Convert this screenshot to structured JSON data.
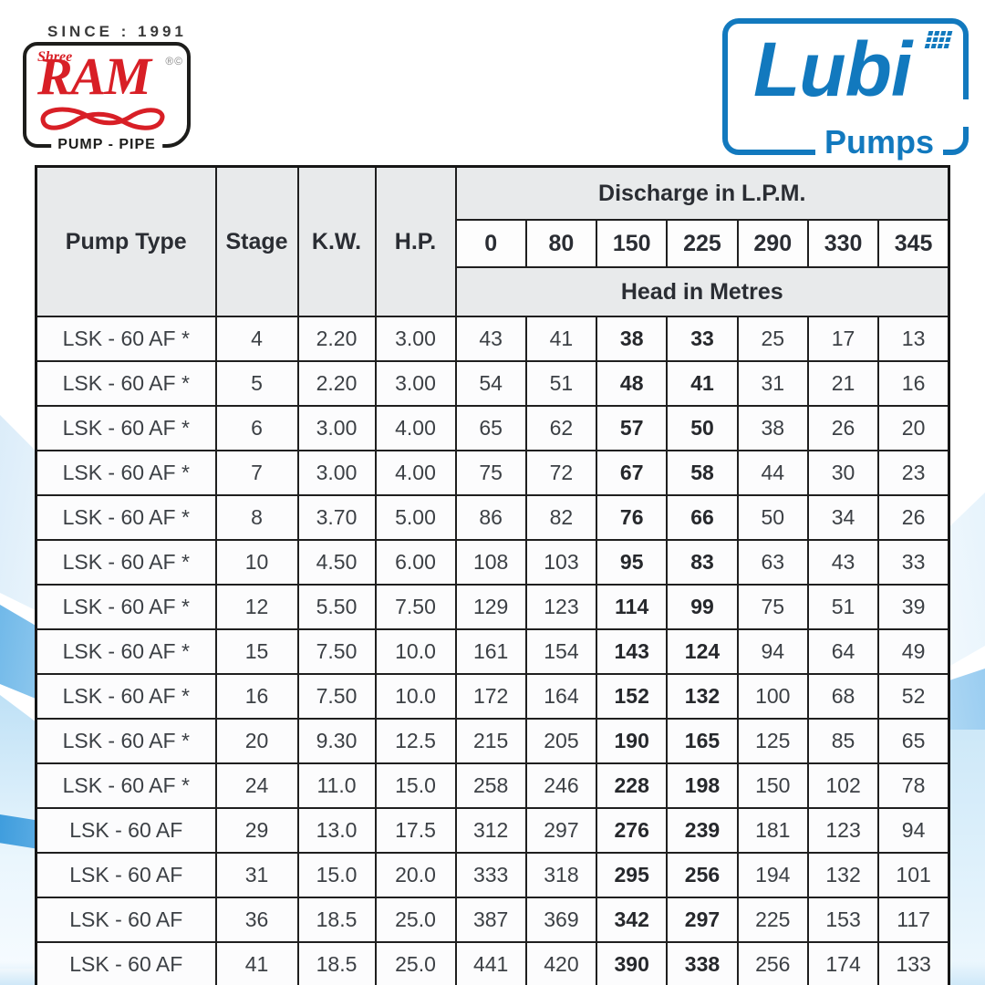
{
  "branding": {
    "since_text": "SINCE : 1991",
    "shree_label": "Shree",
    "ram_label": "RAM",
    "reg_marks": "®©",
    "pump_pipe_label": "PUMP - PIPE",
    "lubi_label": "Lubi",
    "pumps_label": "Pumps"
  },
  "colors": {
    "ram_red": "#d81f26",
    "lubi_blue": "#1279be",
    "header_bg": "#e8eaeb",
    "table_border": "#1f1f1f"
  },
  "table": {
    "headers": {
      "pump_type": "Pump Type",
      "stage": "Stage",
      "kw": "K.W.",
      "hp": "H.P.",
      "discharge": "Discharge in L.P.M.",
      "head": "Head in Metres"
    },
    "discharge_columns": [
      "0",
      "80",
      "150",
      "225",
      "290",
      "330",
      "345"
    ],
    "bold_discharge_indices": [
      2,
      3
    ],
    "rows": [
      {
        "pump_type": "LSK - 60 AF  *",
        "stage": "4",
        "kw": "2.20",
        "hp": "3.00",
        "heads": [
          "43",
          "41",
          "38",
          "33",
          "25",
          "17",
          "13"
        ]
      },
      {
        "pump_type": "LSK - 60 AF  *",
        "stage": "5",
        "kw": "2.20",
        "hp": "3.00",
        "heads": [
          "54",
          "51",
          "48",
          "41",
          "31",
          "21",
          "16"
        ]
      },
      {
        "pump_type": "LSK - 60 AF  *",
        "stage": "6",
        "kw": "3.00",
        "hp": "4.00",
        "heads": [
          "65",
          "62",
          "57",
          "50",
          "38",
          "26",
          "20"
        ]
      },
      {
        "pump_type": "LSK - 60 AF  *",
        "stage": "7",
        "kw": "3.00",
        "hp": "4.00",
        "heads": [
          "75",
          "72",
          "67",
          "58",
          "44",
          "30",
          "23"
        ]
      },
      {
        "pump_type": "LSK - 60 AF  *",
        "stage": "8",
        "kw": "3.70",
        "hp": "5.00",
        "heads": [
          "86",
          "82",
          "76",
          "66",
          "50",
          "34",
          "26"
        ]
      },
      {
        "pump_type": "LSK - 60 AF  *",
        "stage": "10",
        "kw": "4.50",
        "hp": "6.00",
        "heads": [
          "108",
          "103",
          "95",
          "83",
          "63",
          "43",
          "33"
        ]
      },
      {
        "pump_type": "LSK - 60 AF  *",
        "stage": "12",
        "kw": "5.50",
        "hp": "7.50",
        "heads": [
          "129",
          "123",
          "114",
          "99",
          "75",
          "51",
          "39"
        ]
      },
      {
        "pump_type": "LSK - 60 AF  *",
        "stage": "15",
        "kw": "7.50",
        "hp": "10.0",
        "heads": [
          "161",
          "154",
          "143",
          "124",
          "94",
          "64",
          "49"
        ]
      },
      {
        "pump_type": "LSK - 60 AF  *",
        "stage": "16",
        "kw": "7.50",
        "hp": "10.0",
        "heads": [
          "172",
          "164",
          "152",
          "132",
          "100",
          "68",
          "52"
        ]
      },
      {
        "pump_type": "LSK - 60 AF  *",
        "stage": "20",
        "kw": "9.30",
        "hp": "12.5",
        "heads": [
          "215",
          "205",
          "190",
          "165",
          "125",
          "85",
          "65"
        ]
      },
      {
        "pump_type": "LSK - 60 AF  *",
        "stage": "24",
        "kw": "11.0",
        "hp": "15.0",
        "heads": [
          "258",
          "246",
          "228",
          "198",
          "150",
          "102",
          "78"
        ]
      },
      {
        "pump_type": "LSK - 60 AF",
        "stage": "29",
        "kw": "13.0",
        "hp": "17.5",
        "heads": [
          "312",
          "297",
          "276",
          "239",
          "181",
          "123",
          "94"
        ]
      },
      {
        "pump_type": "LSK - 60 AF",
        "stage": "31",
        "kw": "15.0",
        "hp": "20.0",
        "heads": [
          "333",
          "318",
          "295",
          "256",
          "194",
          "132",
          "101"
        ]
      },
      {
        "pump_type": "LSK - 60 AF",
        "stage": "36",
        "kw": "18.5",
        "hp": "25.0",
        "heads": [
          "387",
          "369",
          "342",
          "297",
          "225",
          "153",
          "117"
        ]
      },
      {
        "pump_type": "LSK - 60 AF",
        "stage": "41",
        "kw": "18.5",
        "hp": "25.0",
        "heads": [
          "441",
          "420",
          "390",
          "338",
          "256",
          "174",
          "133"
        ]
      }
    ]
  }
}
